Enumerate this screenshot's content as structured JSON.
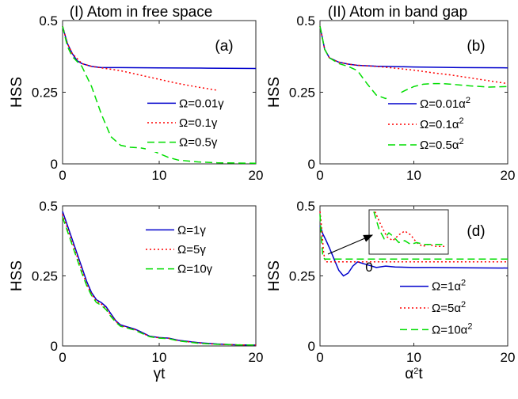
{
  "column_titles": [
    "(I) Atom in free space",
    "(II) Atom in band gap"
  ],
  "colors": {
    "blue": "#0000cc",
    "red": "#ff0000",
    "green": "#00dd00"
  },
  "chart_data": [
    {
      "id": "a",
      "type": "line",
      "label": "(a)",
      "ylabel": "HSS",
      "xlabel": "",
      "xlim": [
        0,
        20
      ],
      "ylim": [
        0,
        0.5
      ],
      "xticks": [
        "0",
        "10",
        "20"
      ],
      "yticks": [
        "0",
        "0.25",
        "0.5"
      ],
      "legend_position": "right",
      "series": [
        {
          "name": "Ω=0.01γ",
          "color": "blue",
          "style": "solid",
          "x": [
            0,
            0.5,
            1,
            1.5,
            2,
            3,
            4,
            6,
            10,
            15,
            20
          ],
          "y": [
            0.48,
            0.42,
            0.385,
            0.36,
            0.35,
            0.34,
            0.336,
            0.336,
            0.335,
            0.334,
            0.333
          ]
        },
        {
          "name": "Ω=0.1γ",
          "color": "red",
          "style": "dotted",
          "x": [
            0,
            0.5,
            1,
            2,
            3,
            4,
            6,
            8,
            10,
            12,
            14,
            16
          ],
          "y": [
            0.48,
            0.42,
            0.385,
            0.35,
            0.34,
            0.335,
            0.325,
            0.31,
            0.295,
            0.28,
            0.268,
            0.257
          ]
        },
        {
          "name": "Ω=0.5γ",
          "color": "green",
          "style": "dashed",
          "x": [
            0,
            0.5,
            1,
            2,
            3,
            4,
            5,
            6,
            7,
            8,
            9,
            10,
            11,
            12,
            14,
            16,
            18,
            20
          ],
          "y": [
            0.48,
            0.41,
            0.375,
            0.34,
            0.27,
            0.175,
            0.095,
            0.065,
            0.058,
            0.056,
            0.05,
            0.036,
            0.022,
            0.013,
            0.007,
            0.004,
            0.003,
            0.002
          ]
        }
      ]
    },
    {
      "id": "b",
      "type": "line",
      "label": "(b)",
      "ylabel": "HSS",
      "xlabel": "",
      "xlim": [
        0,
        20
      ],
      "ylim": [
        0,
        0.5
      ],
      "xticks": [
        "0",
        "10",
        "20"
      ],
      "yticks": [
        "0",
        "0.25",
        "0.5"
      ],
      "legend_position": "right",
      "series": [
        {
          "name": "Ω=0.01α²",
          "color": "blue",
          "style": "solid",
          "x": [
            0,
            0.5,
            1,
            2,
            3,
            4,
            6,
            10,
            15,
            20
          ],
          "y": [
            0.48,
            0.4,
            0.37,
            0.355,
            0.348,
            0.344,
            0.341,
            0.338,
            0.336,
            0.335
          ]
        },
        {
          "name": "Ω=0.1α²",
          "color": "red",
          "style": "dotted",
          "x": [
            0,
            0.5,
            1,
            2,
            3,
            4,
            6,
            8,
            10,
            12,
            14,
            16,
            18,
            20
          ],
          "y": [
            0.48,
            0.4,
            0.37,
            0.355,
            0.348,
            0.344,
            0.34,
            0.334,
            0.327,
            0.318,
            0.31,
            0.3,
            0.29,
            0.28
          ]
        },
        {
          "name": "Ω=0.5α²",
          "color": "green",
          "style": "dashed",
          "x": [
            0,
            0.5,
            1,
            2,
            3,
            4,
            5,
            6,
            7,
            8,
            9,
            10,
            11,
            12,
            13,
            14,
            16,
            18,
            20
          ],
          "y": [
            0.48,
            0.4,
            0.37,
            0.35,
            0.34,
            0.325,
            0.28,
            0.24,
            0.228,
            0.238,
            0.255,
            0.27,
            0.278,
            0.28,
            0.28,
            0.278,
            0.272,
            0.268,
            0.27
          ]
        }
      ]
    },
    {
      "id": "c",
      "type": "line",
      "label": "(c)",
      "ylabel": "HSS",
      "xlabel": "γt",
      "xlim": [
        0,
        20
      ],
      "ylim": [
        0,
        0.5
      ],
      "xticks": [
        "0",
        "10",
        "20"
      ],
      "yticks": [
        "0",
        "0.25",
        "0.5"
      ],
      "legend_position": "top-right",
      "series": [
        {
          "name": "Ω=1γ",
          "color": "blue",
          "style": "solid",
          "x": [
            0,
            0.5,
            1,
            1.5,
            2,
            2.5,
            3,
            3.5,
            4,
            4.5,
            5,
            5.5,
            6,
            6.5,
            7,
            7.5,
            8,
            9,
            10,
            11,
            12,
            14,
            16,
            18,
            20
          ],
          "y": [
            0.48,
            0.43,
            0.38,
            0.33,
            0.28,
            0.23,
            0.19,
            0.165,
            0.155,
            0.14,
            0.115,
            0.09,
            0.075,
            0.07,
            0.065,
            0.06,
            0.052,
            0.035,
            0.03,
            0.028,
            0.02,
            0.012,
            0.007,
            0.004,
            0.003
          ]
        },
        {
          "name": "Ω=5γ",
          "color": "red",
          "style": "dotted",
          "x": [
            0,
            0.5,
            1,
            1.5,
            2,
            2.5,
            3,
            3.5,
            4,
            4.5,
            5,
            5.5,
            6,
            6.5,
            7,
            7.5,
            8,
            9,
            10,
            11,
            12,
            14,
            16,
            18,
            20
          ],
          "y": [
            0.47,
            0.42,
            0.37,
            0.32,
            0.27,
            0.22,
            0.185,
            0.16,
            0.15,
            0.135,
            0.11,
            0.088,
            0.073,
            0.068,
            0.063,
            0.058,
            0.05,
            0.034,
            0.029,
            0.027,
            0.019,
            0.011,
            0.006,
            0.004,
            0.003
          ]
        },
        {
          "name": "Ω=10γ",
          "color": "green",
          "style": "dashed",
          "x": [
            0,
            0.5,
            1,
            1.5,
            2,
            2.5,
            3,
            3.5,
            4,
            4.5,
            5,
            5.5,
            6,
            6.5,
            7,
            7.5,
            8,
            9,
            10,
            11,
            12,
            14,
            16,
            18,
            20
          ],
          "y": [
            0.46,
            0.41,
            0.36,
            0.31,
            0.26,
            0.215,
            0.18,
            0.155,
            0.145,
            0.13,
            0.105,
            0.085,
            0.07,
            0.066,
            0.061,
            0.056,
            0.048,
            0.033,
            0.028,
            0.026,
            0.018,
            0.01,
            0.006,
            0.004,
            0.003
          ]
        }
      ]
    },
    {
      "id": "d",
      "type": "line",
      "label": "(d)",
      "ylabel": "HSS",
      "xlabel": "α²t",
      "xlim": [
        0,
        20
      ],
      "ylim": [
        0,
        0.5
      ],
      "xticks": [
        "0",
        "10",
        "20"
      ],
      "yticks": [
        "0",
        "0.25",
        "0.5"
      ],
      "legend_position": "right",
      "inset_tick": "0",
      "series": [
        {
          "name": "Ω=1α²",
          "color": "blue",
          "style": "solid",
          "x": [
            0,
            0.3,
            0.6,
            1,
            1.5,
            2,
            2.5,
            3,
            3.5,
            4,
            5,
            6,
            7,
            8,
            10,
            12,
            15,
            20
          ],
          "y": [
            0.43,
            0.4,
            0.38,
            0.35,
            0.31,
            0.27,
            0.25,
            0.26,
            0.285,
            0.3,
            0.29,
            0.28,
            0.285,
            0.282,
            0.28,
            0.28,
            0.279,
            0.278
          ]
        },
        {
          "name": "Ω=5α²",
          "color": "red",
          "style": "dotted",
          "x": [
            0,
            0.2,
            0.4,
            0.6,
            0.8,
            1,
            1.5,
            2,
            4,
            8,
            12,
            16,
            20
          ],
          "y": [
            0.48,
            0.41,
            0.33,
            0.3,
            0.3,
            0.3,
            0.3,
            0.3,
            0.3,
            0.3,
            0.3,
            0.3,
            0.3
          ]
        },
        {
          "name": "Ω=10α²",
          "color": "green",
          "style": "dashed",
          "x": [
            0,
            0.15,
            0.3,
            0.5,
            0.8,
            1,
            1.5,
            2,
            4,
            8,
            12,
            16,
            20
          ],
          "y": [
            0.47,
            0.38,
            0.32,
            0.31,
            0.31,
            0.31,
            0.31,
            0.31,
            0.31,
            0.31,
            0.31,
            0.31,
            0.31
          ]
        }
      ]
    }
  ]
}
